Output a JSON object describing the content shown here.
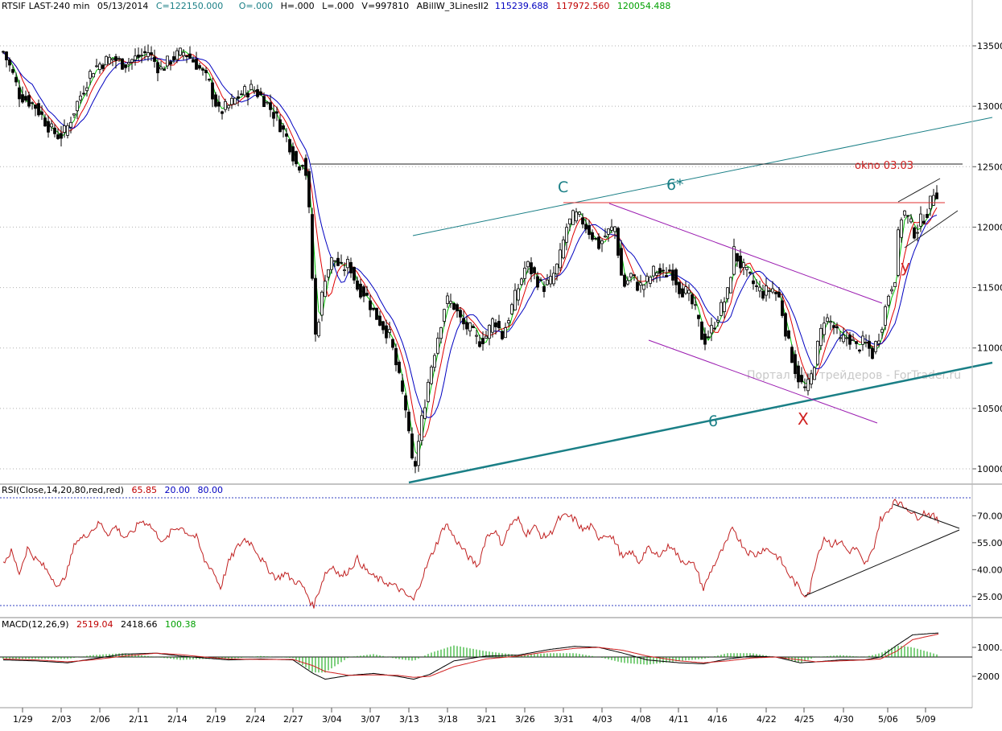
{
  "header": {
    "symbol": "RTSIF LAST-240 min",
    "date": "05/13/2014",
    "close": "C=122150.000",
    "open": "O=.000",
    "high": "H=.000",
    "low": "L=.000",
    "volume": "V=997810",
    "study_name": "ABillW_3LinesII2",
    "study_v1": "115239.688",
    "study_v2": "117972.560",
    "study_v3": "120054.488"
  },
  "colors": {
    "background": "#ffffff",
    "up_bar": "#000000",
    "ma_fast": "#00c000",
    "ma_mid": "#e00000",
    "ma_slow": "#0000c0",
    "teal": "#1a7f86",
    "purple": "#9a1ab0",
    "red_text": "#d02020",
    "rsi_line": "#c02020",
    "macd_line": "#000000",
    "signal_line": "#d02020",
    "histogram": "#00a000",
    "dotted_blue": "#3040c0"
  },
  "rsi_panel": {
    "label": "RSI(Close,14,20,80,red,red)",
    "value": "65.85",
    "lower": "20.00",
    "upper": "80.00",
    "ticks": [
      "70.00",
      "55.00",
      "40.00",
      "25.00"
    ]
  },
  "macd_panel": {
    "label": "MACD(12,26,9)",
    "macd": "2519.04",
    "signal": "2418.66",
    "hist": "100.38",
    "ticks": [
      "1000.",
      "2000"
    ]
  },
  "annotations": {
    "c_label": "C",
    "six_star": "6*",
    "six": "6",
    "x_label": "X",
    "y_label": "y",
    "okno": "okno 03.03",
    "watermark": "Портал для трейдеров - ForTrader.ru"
  },
  "chart_data": {
    "type": "candlestick",
    "title": "",
    "xlabel": "",
    "ylabel": "",
    "ylim": [
      9850,
      13700
    ],
    "y_ticks": [
      "13500",
      "13000",
      "12500",
      "12000",
      "11500",
      "11000",
      "10500",
      "10000"
    ],
    "x_ticks": [
      "1/29",
      "2/03",
      "2/06",
      "2/11",
      "2/14",
      "2/19",
      "2/24",
      "2/27",
      "3/04",
      "3/07",
      "3/13",
      "3/18",
      "3/21",
      "3/26",
      "3/31",
      "4/03",
      "4/08",
      "4/11",
      "4/16",
      "4/22",
      "4/25",
      "4/30",
      "5/06",
      "5/09"
    ],
    "price_path_approx": [
      [
        0,
        13450
      ],
      [
        10,
        13300
      ],
      [
        20,
        13100
      ],
      [
        30,
        13050
      ],
      [
        40,
        13000
      ],
      [
        50,
        12900
      ],
      [
        60,
        12800
      ],
      [
        70,
        12750
      ],
      [
        78,
        12800
      ],
      [
        90,
        13000
      ],
      [
        100,
        13150
      ],
      [
        110,
        13300
      ],
      [
        120,
        13350
      ],
      [
        135,
        13400
      ],
      [
        150,
        13350
      ],
      [
        165,
        13400
      ],
      [
        180,
        13450
      ],
      [
        195,
        13300
      ],
      [
        210,
        13400
      ],
      [
        225,
        13450
      ],
      [
        240,
        13350
      ],
      [
        255,
        13200
      ],
      [
        268,
        12950
      ],
      [
        280,
        13000
      ],
      [
        295,
        13100
      ],
      [
        310,
        13150
      ],
      [
        325,
        13050
      ],
      [
        340,
        12900
      ],
      [
        355,
        12700
      ],
      [
        365,
        12500
      ],
      [
        372,
        12550
      ],
      [
        378,
        12400
      ],
      [
        383,
        11700
      ],
      [
        388,
        11100
      ],
      [
        393,
        11300
      ],
      [
        400,
        11600
      ],
      [
        410,
        11750
      ],
      [
        420,
        11650
      ],
      [
        430,
        11700
      ],
      [
        440,
        11500
      ],
      [
        450,
        11450
      ],
      [
        460,
        11300
      ],
      [
        470,
        11200
      ],
      [
        480,
        11100
      ],
      [
        490,
        10800
      ],
      [
        500,
        10500
      ],
      [
        505,
        10200
      ],
      [
        510,
        9950
      ],
      [
        520,
        10400
      ],
      [
        530,
        10800
      ],
      [
        540,
        11100
      ],
      [
        550,
        11400
      ],
      [
        560,
        11350
      ],
      [
        570,
        11200
      ],
      [
        580,
        11150
      ],
      [
        590,
        11050
      ],
      [
        600,
        11100
      ],
      [
        610,
        11250
      ],
      [
        620,
        11100
      ],
      [
        630,
        11300
      ],
      [
        640,
        11500
      ],
      [
        650,
        11700
      ],
      [
        660,
        11600
      ],
      [
        670,
        11500
      ],
      [
        680,
        11550
      ],
      [
        690,
        11700
      ],
      [
        700,
        12000
      ],
      [
        710,
        12100
      ],
      [
        720,
        12050
      ],
      [
        730,
        11950
      ],
      [
        740,
        11850
      ],
      [
        750,
        11950
      ],
      [
        760,
        12000
      ],
      [
        770,
        11500
      ],
      [
        780,
        11600
      ],
      [
        790,
        11500
      ],
      [
        800,
        11550
      ],
      [
        810,
        11650
      ],
      [
        820,
        11600
      ],
      [
        830,
        11650
      ],
      [
        840,
        11500
      ],
      [
        850,
        11450
      ],
      [
        860,
        11300
      ],
      [
        870,
        11050
      ],
      [
        880,
        11150
      ],
      [
        890,
        11300
      ],
      [
        900,
        11450
      ],
      [
        908,
        11800
      ],
      [
        915,
        11700
      ],
      [
        925,
        11600
      ],
      [
        935,
        11500
      ],
      [
        945,
        11450
      ],
      [
        955,
        11500
      ],
      [
        965,
        11400
      ],
      [
        975,
        11050
      ],
      [
        985,
        10800
      ],
      [
        995,
        10650
      ],
      [
        1002,
        10700
      ],
      [
        1010,
        10950
      ],
      [
        1020,
        11250
      ],
      [
        1030,
        11200
      ],
      [
        1040,
        11050
      ],
      [
        1050,
        11100
      ],
      [
        1060,
        11000
      ],
      [
        1070,
        11050
      ],
      [
        1080,
        10950
      ],
      [
        1090,
        11150
      ],
      [
        1100,
        11450
      ],
      [
        1108,
        11600
      ],
      [
        1113,
        12000
      ],
      [
        1118,
        12150
      ],
      [
        1125,
        12050
      ],
      [
        1133,
        11950
      ],
      [
        1140,
        12050
      ],
      [
        1150,
        12150
      ],
      [
        1158,
        12350
      ],
      [
        1163,
        12200
      ]
    ],
    "rsi": {
      "levels": [
        20,
        80
      ],
      "last": 65.85,
      "path_approx": [
        [
          0,
          44
        ],
        [
          10,
          50
        ],
        [
          20,
          38
        ],
        [
          30,
          52
        ],
        [
          40,
          46
        ],
        [
          50,
          42
        ],
        [
          60,
          36
        ],
        [
          70,
          30
        ],
        [
          80,
          40
        ],
        [
          90,
          56
        ],
        [
          100,
          58
        ],
        [
          110,
          62
        ],
        [
          120,
          66
        ],
        [
          130,
          60
        ],
        [
          140,
          64
        ],
        [
          150,
          58
        ],
        [
          160,
          60
        ],
        [
          170,
          67
        ],
        [
          180,
          66
        ],
        [
          190,
          60
        ],
        [
          200,
          55
        ],
        [
          210,
          62
        ],
        [
          220,
          64
        ],
        [
          230,
          60
        ],
        [
          240,
          58
        ],
        [
          250,
          45
        ],
        [
          260,
          40
        ],
        [
          270,
          30
        ],
        [
          280,
          44
        ],
        [
          290,
          52
        ],
        [
          300,
          57
        ],
        [
          310,
          54
        ],
        [
          320,
          46
        ],
        [
          330,
          40
        ],
        [
          340,
          35
        ],
        [
          350,
          38
        ],
        [
          360,
          34
        ],
        [
          370,
          32
        ],
        [
          378,
          26
        ],
        [
          385,
          19
        ],
        [
          392,
          28
        ],
        [
          400,
          38
        ],
        [
          410,
          42
        ],
        [
          420,
          36
        ],
        [
          430,
          40
        ],
        [
          440,
          46
        ],
        [
          450,
          40
        ],
        [
          460,
          36
        ],
        [
          470,
          34
        ],
        [
          480,
          32
        ],
        [
          490,
          30
        ],
        [
          500,
          26
        ],
        [
          510,
          23
        ],
        [
          520,
          35
        ],
        [
          530,
          46
        ],
        [
          540,
          56
        ],
        [
          550,
          66
        ],
        [
          560,
          58
        ],
        [
          570,
          52
        ],
        [
          580,
          46
        ],
        [
          590,
          42
        ],
        [
          600,
          58
        ],
        [
          610,
          62
        ],
        [
          620,
          54
        ],
        [
          630,
          65
        ],
        [
          640,
          68
        ],
        [
          650,
          60
        ],
        [
          660,
          64
        ],
        [
          670,
          58
        ],
        [
          680,
          60
        ],
        [
          690,
          68
        ],
        [
          700,
          70
        ],
        [
          710,
          68
        ],
        [
          720,
          62
        ],
        [
          730,
          64
        ],
        [
          740,
          58
        ],
        [
          750,
          60
        ],
        [
          760,
          56
        ],
        [
          770,
          46
        ],
        [
          780,
          50
        ],
        [
          790,
          44
        ],
        [
          800,
          52
        ],
        [
          810,
          48
        ],
        [
          820,
          50
        ],
        [
          830,
          54
        ],
        [
          840,
          46
        ],
        [
          850,
          44
        ],
        [
          860,
          42
        ],
        [
          870,
          29
        ],
        [
          880,
          40
        ],
        [
          890,
          48
        ],
        [
          900,
          56
        ],
        [
          907,
          64
        ],
        [
          915,
          56
        ],
        [
          925,
          50
        ],
        [
          935,
          48
        ],
        [
          945,
          52
        ],
        [
          955,
          50
        ],
        [
          965,
          46
        ],
        [
          975,
          38
        ],
        [
          985,
          32
        ],
        [
          995,
          26
        ],
        [
          1002,
          28
        ],
        [
          1010,
          46
        ],
        [
          1020,
          58
        ],
        [
          1030,
          54
        ],
        [
          1040,
          56
        ],
        [
          1050,
          50
        ],
        [
          1060,
          52
        ],
        [
          1070,
          42
        ],
        [
          1080,
          50
        ],
        [
          1090,
          68
        ],
        [
          1100,
          72
        ],
        [
          1108,
          80
        ],
        [
          1115,
          76
        ],
        [
          1125,
          74
        ],
        [
          1135,
          69
        ],
        [
          1145,
          72
        ],
        [
          1155,
          70
        ],
        [
          1163,
          66
        ]
      ]
    },
    "macd": {
      "last_macd": 2519.04,
      "last_signal": 2418.66,
      "last_hist": 100.38,
      "macd_path_approx": [
        [
          0,
          -300
        ],
        [
          40,
          -400
        ],
        [
          80,
          -600
        ],
        [
          110,
          -200
        ],
        [
          150,
          300
        ],
        [
          190,
          400
        ],
        [
          220,
          100
        ],
        [
          250,
          -100
        ],
        [
          280,
          -300
        ],
        [
          320,
          -200
        ],
        [
          360,
          -300
        ],
        [
          385,
          -1700
        ],
        [
          400,
          -2300
        ],
        [
          430,
          -1900
        ],
        [
          460,
          -1700
        ],
        [
          490,
          -2000
        ],
        [
          510,
          -2300
        ],
        [
          530,
          -1800
        ],
        [
          560,
          -400
        ],
        [
          600,
          100
        ],
        [
          640,
          200
        ],
        [
          680,
          800
        ],
        [
          710,
          1100
        ],
        [
          740,
          1000
        ],
        [
          770,
          400
        ],
        [
          800,
          -300
        ],
        [
          840,
          -600
        ],
        [
          870,
          -700
        ],
        [
          900,
          -200
        ],
        [
          930,
          100
        ],
        [
          960,
          0
        ],
        [
          990,
          -600
        ],
        [
          1010,
          -500
        ],
        [
          1040,
          -300
        ],
        [
          1070,
          -300
        ],
        [
          1090,
          0
        ],
        [
          1110,
          1200
        ],
        [
          1130,
          2300
        ],
        [
          1163,
          2500
        ]
      ],
      "signal_path_approx": [
        [
          0,
          -200
        ],
        [
          40,
          -300
        ],
        [
          80,
          -500
        ],
        [
          110,
          -300
        ],
        [
          150,
          100
        ],
        [
          190,
          400
        ],
        [
          220,
          250
        ],
        [
          250,
          0
        ],
        [
          280,
          -200
        ],
        [
          320,
          -250
        ],
        [
          360,
          -250
        ],
        [
          385,
          -900
        ],
        [
          400,
          -1500
        ],
        [
          430,
          -1900
        ],
        [
          460,
          -1850
        ],
        [
          490,
          -1900
        ],
        [
          510,
          -2100
        ],
        [
          530,
          -2000
        ],
        [
          560,
          -1000
        ],
        [
          600,
          -200
        ],
        [
          640,
          100
        ],
        [
          680,
          600
        ],
        [
          710,
          900
        ],
        [
          740,
          1000
        ],
        [
          770,
          700
        ],
        [
          800,
          100
        ],
        [
          840,
          -400
        ],
        [
          870,
          -600
        ],
        [
          900,
          -400
        ],
        [
          930,
          -100
        ],
        [
          960,
          0
        ],
        [
          990,
          -300
        ],
        [
          1010,
          -500
        ],
        [
          1040,
          -400
        ],
        [
          1070,
          -300
        ],
        [
          1090,
          -200
        ],
        [
          1110,
          600
        ],
        [
          1130,
          1800
        ],
        [
          1163,
          2400
        ]
      ]
    }
  }
}
